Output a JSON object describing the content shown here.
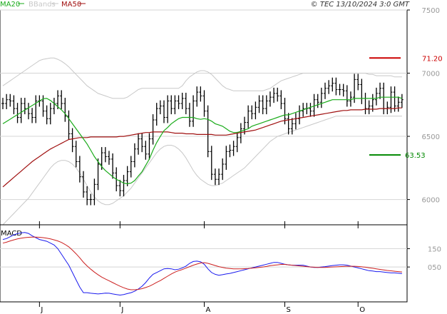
{
  "header": {
    "legend": [
      {
        "label": "MA20",
        "color": "#1aab1a"
      },
      {
        "label": "BBands",
        "color": "#c8c8c8"
      },
      {
        "label": "MA50",
        "color": "#a01010"
      }
    ],
    "copyright": "© TEC 13/10/2024 3:0 GMT"
  },
  "chart_data": [
    {
      "type": "ohlc",
      "title": "",
      "xlabel": "",
      "ylabel": "",
      "ylim": [
        5800,
        7500
      ],
      "yticks": [
        "7500",
        "7000",
        "6500",
        "6000"
      ],
      "yticks_values": [
        7500,
        7000,
        6500,
        6000
      ],
      "x_tick_labels": [
        "J",
        "J",
        "A",
        "S",
        "O"
      ],
      "x_tick_index": [
        10,
        32,
        55,
        77,
        97
      ],
      "grid": true,
      "annotations": [
        {
          "label": "71.20",
          "value": 7120,
          "color": "#cc0000"
        },
        {
          "label": "63.53",
          "value": 6353,
          "color": "#008800"
        }
      ],
      "price_close": [
        6760,
        6790,
        6780,
        6720,
        6650,
        6760,
        6720,
        6680,
        6650,
        6780,
        6780,
        6700,
        6640,
        6720,
        6760,
        6820,
        6760,
        6660,
        6520,
        6420,
        6300,
        6180,
        6060,
        6000,
        6000,
        6120,
        6280,
        6370,
        6340,
        6320,
        6210,
        6110,
        6070,
        6150,
        6220,
        6300,
        6400,
        6480,
        6420,
        6360,
        6480,
        6630,
        6720,
        6740,
        6650,
        6780,
        6720,
        6780,
        6760,
        6800,
        6720,
        6620,
        6780,
        6850,
        6820,
        6700,
        6380,
        6200,
        6160,
        6200,
        6280,
        6380,
        6390,
        6420,
        6490,
        6560,
        6610,
        6700,
        6680,
        6730,
        6780,
        6720,
        6780,
        6810,
        6840,
        6820,
        6760,
        6640,
        6560,
        6600,
        6640,
        6700,
        6720,
        6720,
        6700,
        6790,
        6770,
        6840,
        6880,
        6900,
        6920,
        6870,
        6870,
        6860,
        6780,
        6810,
        6950,
        6910,
        6800,
        6720,
        6740,
        6790,
        6840,
        6880,
        6720,
        6730,
        6850,
        6740,
        6770,
        6790
      ],
      "series": [
        {
          "name": "MA20",
          "values": [
            6600,
            6618,
            6636,
            6654,
            6672,
            6690,
            6708,
            6726,
            6744,
            6762,
            6780,
            6798,
            6800,
            6784,
            6760,
            6735,
            6710,
            6680,
            6640,
            6600,
            6560,
            6520,
            6480,
            6440,
            6390,
            6340,
            6300,
            6260,
            6230,
            6205,
            6180,
            6160,
            6145,
            6130,
            6125,
            6130,
            6150,
            6185,
            6220,
            6270,
            6320,
            6390,
            6450,
            6500,
            6545,
            6570,
            6600,
            6620,
            6640,
            6650,
            6650,
            6650,
            6650,
            6640,
            6635,
            6640,
            6635,
            6620,
            6600,
            6590,
            6580,
            6560,
            6540,
            6530,
            6530,
            6540,
            6550,
            6560,
            6580,
            6590,
            6600,
            6610,
            6620,
            6630,
            6640,
            6650,
            6660,
            6670,
            6670,
            6680,
            6690,
            6700,
            6710,
            6720,
            6730,
            6740,
            6750,
            6760,
            6770,
            6780,
            6790,
            6790,
            6790,
            6790,
            6790,
            6790,
            6800,
            6800,
            6800,
            6800,
            6800,
            6800,
            6800,
            6810,
            6810,
            6810,
            6810,
            6810,
            6810,
            6800
          ]
        },
        {
          "name": "MA50",
          "values": [
            6100,
            6125,
            6150,
            6175,
            6200,
            6225,
            6250,
            6275,
            6300,
            6320,
            6340,
            6360,
            6380,
            6400,
            6415,
            6430,
            6445,
            6460,
            6475,
            6480,
            6485,
            6490,
            6490,
            6490,
            6495,
            6495,
            6495,
            6495,
            6495,
            6495,
            6495,
            6495,
            6500,
            6500,
            6505,
            6510,
            6515,
            6520,
            6525,
            6530,
            6530,
            6535,
            6535,
            6535,
            6535,
            6535,
            6530,
            6525,
            6525,
            6525,
            6520,
            6520,
            6520,
            6515,
            6515,
            6515,
            6515,
            6515,
            6510,
            6510,
            6510,
            6510,
            6515,
            6520,
            6525,
            6530,
            6535,
            6540,
            6545,
            6550,
            6560,
            6570,
            6580,
            6590,
            6600,
            6610,
            6620,
            6625,
            6630,
            6635,
            6640,
            6645,
            6650,
            6655,
            6660,
            6665,
            6670,
            6675,
            6680,
            6685,
            6690,
            6695,
            6700,
            6705,
            6705,
            6710,
            6710,
            6710,
            6710,
            6715,
            6715,
            6715,
            6715,
            6720,
            6720,
            6720,
            6720,
            6720,
            6725,
            6725
          ]
        },
        {
          "name": "BBands upper",
          "values": [
            6900,
            6920,
            6940,
            6960,
            6980,
            7000,
            7020,
            7040,
            7060,
            7080,
            7100,
            7110,
            7115,
            7120,
            7120,
            7110,
            7095,
            7075,
            7050,
            7020,
            6990,
            6960,
            6930,
            6900,
            6880,
            6860,
            6840,
            6830,
            6820,
            6810,
            6800,
            6800,
            6800,
            6800,
            6810,
            6830,
            6850,
            6870,
            6880,
            6880,
            6880,
            6880,
            6880,
            6880,
            6880,
            6880,
            6880,
            6880,
            6880,
            6900,
            6940,
            6970,
            6990,
            7010,
            7020,
            7020,
            7010,
            6990,
            6960,
            6930,
            6900,
            6880,
            6870,
            6860,
            6860,
            6860,
            6860,
            6860,
            6860,
            6860,
            6860,
            6860,
            6870,
            6880,
            6900,
            6920,
            6940,
            6950,
            6960,
            6970,
            6980,
            6990,
            7000,
            7000,
            7000,
            7000,
            7000,
            7000,
            7000,
            7000,
            7000,
            7000,
            7000,
            7000,
            7000,
            7000,
            7000,
            7000,
            7000,
            7000,
            6990,
            6990,
            6980,
            6980,
            6980,
            6980,
            6980,
            6970,
            6970,
            6970
          ]
        },
        {
          "name": "BBands lower",
          "values": [
            5800,
            5830,
            5860,
            5890,
            5920,
            5950,
            5980,
            6010,
            6050,
            6090,
            6130,
            6170,
            6210,
            6250,
            6280,
            6300,
            6310,
            6310,
            6300,
            6280,
            6250,
            6210,
            6160,
            6110,
            6060,
            6020,
            5990,
            5970,
            5960,
            5960,
            5970,
            5990,
            6010,
            6030,
            6060,
            6090,
            6130,
            6170,
            6210,
            6250,
            6290,
            6330,
            6370,
            6400,
            6420,
            6430,
            6430,
            6420,
            6400,
            6370,
            6330,
            6280,
            6230,
            6190,
            6160,
            6140,
            6120,
            6110,
            6110,
            6120,
            6130,
            6150,
            6170,
            6190,
            6210,
            6230,
            6250,
            6280,
            6310,
            6340,
            6370,
            6400,
            6430,
            6460,
            6480,
            6500,
            6510,
            6520,
            6530,
            6540,
            6550,
            6560,
            6570,
            6580,
            6590,
            6600,
            6610,
            6620,
            6630,
            6640,
            6650,
            6660,
            6660,
            6660,
            6660,
            6660,
            6660,
            6660,
            6660,
            6660,
            6660,
            6660,
            6660,
            6660,
            6660,
            6660,
            6660,
            6660,
            6660,
            6660
          ]
        }
      ]
    },
    {
      "type": "line",
      "title": "MACD",
      "xlabel": "",
      "ylabel": "",
      "ylim": [
        -140,
        280
      ],
      "yticks": [
        "150",
        "050"
      ],
      "yticks_values": [
        150,
        50
      ],
      "grid": true,
      "series": [
        {
          "name": "MACD",
          "color": "#1a1aee",
          "values": [
            200,
            205,
            215,
            225,
            232,
            236,
            238,
            233,
            220,
            210,
            200,
            195,
            190,
            180,
            170,
            150,
            120,
            90,
            60,
            20,
            -20,
            -60,
            -90,
            -90,
            -93,
            -95,
            -97,
            -95,
            -92,
            -93,
            -97,
            -100,
            -103,
            -100,
            -95,
            -90,
            -82,
            -70,
            -55,
            -35,
            -10,
            10,
            20,
            30,
            40,
            42,
            40,
            35,
            38,
            45,
            55,
            70,
            80,
            82,
            78,
            65,
            40,
            20,
            10,
            5,
            8,
            12,
            15,
            20,
            25,
            30,
            35,
            40,
            45,
            50,
            55,
            60,
            65,
            70,
            75,
            75,
            70,
            65,
            62,
            60,
            60,
            60,
            60,
            55,
            50,
            48,
            48,
            50,
            52,
            55,
            58,
            60,
            62,
            62,
            60,
            55,
            50,
            45,
            40,
            35,
            30,
            28,
            25,
            25,
            22,
            20,
            18,
            18,
            16,
            14
          ]
        },
        {
          "name": "Signal",
          "color": "#cc2020",
          "values": [
            180,
            185,
            192,
            198,
            203,
            207,
            210,
            212,
            213,
            213,
            212,
            210,
            207,
            203,
            198,
            192,
            184,
            173,
            160,
            142,
            122,
            100,
            76,
            56,
            38,
            22,
            8,
            -5,
            -15,
            -25,
            -35,
            -45,
            -55,
            -63,
            -70,
            -74,
            -74,
            -72,
            -68,
            -62,
            -55,
            -45,
            -34,
            -24,
            -12,
            0,
            12,
            22,
            30,
            36,
            44,
            52,
            60,
            66,
            72,
            74,
            70,
            64,
            58,
            52,
            48,
            44,
            42,
            40,
            40,
            40,
            41,
            42,
            44,
            46,
            48,
            50,
            53,
            57,
            60,
            62,
            64,
            64,
            62,
            60,
            58,
            56,
            54,
            52,
            50,
            49,
            48,
            48,
            48,
            49,
            50,
            51,
            52,
            53,
            54,
            54,
            54,
            53,
            51,
            49,
            46,
            43,
            40,
            37,
            34,
            31,
            29,
            27,
            25,
            23
          ]
        }
      ]
    }
  ]
}
